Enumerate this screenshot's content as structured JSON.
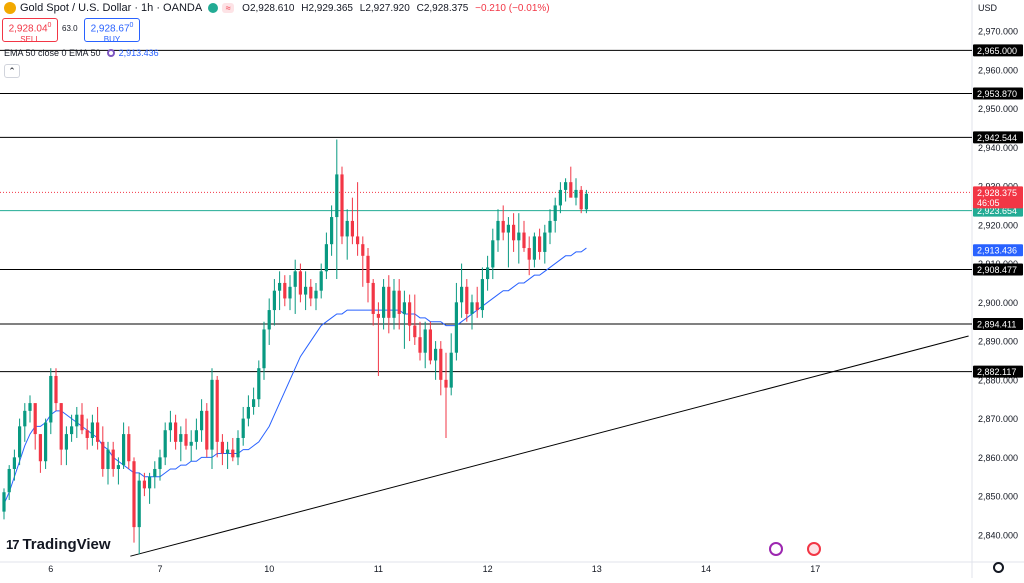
{
  "header": {
    "symbol": "Gold Spot / U.S. Dollar · 1h · OANDA",
    "open_label": "O",
    "open": "2,928.610",
    "high_label": "H",
    "high": "2,929.365",
    "low_label": "L",
    "low": "2,927.920",
    "close_label": "C",
    "close": "2,928.375",
    "change": "−0.210 (−0.01%)",
    "market_icon": "green-dot-icon",
    "wave_icon": "wave-icon",
    "wave_glyph": "≈"
  },
  "trade": {
    "sell_price": "2,928.04",
    "sell_sup": "0",
    "sell_label": "SELL",
    "spread": "63.0",
    "buy_price": "2,928.67",
    "buy_sup": "0",
    "buy_label": "BUY"
  },
  "indicator": {
    "legend": "EMA 50 close 0 EMA 50",
    "value": "2,913.436",
    "collapse_glyph": "⌃"
  },
  "axis": {
    "currency": "USD"
  },
  "logo": {
    "mark": "17",
    "text": "TradingView"
  },
  "colors": {
    "up": "#089981",
    "down": "#f23645",
    "ema": "#2962ff",
    "price_label": "#f23645",
    "teal_line": "#22ab94",
    "level_line": "#000000"
  },
  "chart_data": {
    "type": "candlestick",
    "timeframe": "1h",
    "ylim": [
      2833,
      2978
    ],
    "y_ticks": [
      "2,840.000",
      "2,850.000",
      "2,860.000",
      "2,870.000",
      "2,880.000",
      "2,890.000",
      "2,900.000",
      "2,910.000",
      "2,920.000",
      "2,930.000",
      "2,940.000",
      "2,950.000",
      "2,960.000",
      "2,970.000"
    ],
    "x_labels": [
      {
        "label": "6",
        "index": 9
      },
      {
        "label": "7",
        "index": 30
      },
      {
        "label": "10",
        "index": 51
      },
      {
        "label": "11",
        "index": 72
      },
      {
        "label": "12",
        "index": 93
      },
      {
        "label": "13",
        "index": 114
      },
      {
        "label": "14",
        "index": 135
      },
      {
        "label": "17",
        "index": 156
      }
    ],
    "horizontal_levels": [
      {
        "label": "2,965.000",
        "value": 2965.0
      },
      {
        "label": "2,953.870",
        "value": 2953.87
      },
      {
        "label": "2,942.544",
        "value": 2942.544
      },
      {
        "label": "2,908.477",
        "value": 2908.477
      },
      {
        "label": "2,894.411",
        "value": 2894.411
      },
      {
        "label": "2,882.117",
        "value": 2882.117
      }
    ],
    "teal_level": {
      "label": "2,923.654",
      "value": 2923.654
    },
    "current_price": {
      "label": "2,928.375",
      "countdown": "46:05",
      "value": 2928.375
    },
    "ema": {
      "label": "2,913.436",
      "value": 2913.436
    },
    "trendline": [
      {
        "index": 24.3,
        "value": 2834.5
      },
      {
        "index": 185.5,
        "value": 2891.3
      }
    ],
    "candles": [
      [
        2846,
        2852,
        2844,
        2851
      ],
      [
        2851,
        2858,
        2849,
        2857
      ],
      [
        2857,
        2862,
        2854,
        2860
      ],
      [
        2860,
        2870,
        2858,
        2868
      ],
      [
        2868,
        2874,
        2864,
        2872
      ],
      [
        2872,
        2876,
        2869,
        2874
      ],
      [
        2874,
        2873,
        2862,
        2866
      ],
      [
        2866,
        2866,
        2856,
        2859
      ],
      [
        2859,
        2870,
        2857,
        2869
      ],
      [
        2869,
        2883,
        2866,
        2881
      ],
      [
        2881,
        2883,
        2872,
        2874
      ],
      [
        2874,
        2874,
        2858,
        2862
      ],
      [
        2862,
        2868,
        2858,
        2866
      ],
      [
        2866,
        2871,
        2864,
        2868
      ],
      [
        2868,
        2873,
        2865,
        2871
      ],
      [
        2871,
        2874,
        2866,
        2867
      ],
      [
        2867,
        2870,
        2862,
        2865
      ],
      [
        2865,
        2871,
        2863,
        2869
      ],
      [
        2869,
        2873,
        2862,
        2864
      ],
      [
        2864,
        2868,
        2855,
        2857
      ],
      [
        2857,
        2864,
        2853,
        2862
      ],
      [
        2862,
        2864,
        2855,
        2857
      ],
      [
        2857,
        2860,
        2853,
        2858
      ],
      [
        2858,
        2869,
        2857,
        2866
      ],
      [
        2866,
        2868,
        2857,
        2859
      ],
      [
        2859,
        2860,
        2838,
        2842
      ],
      [
        2842,
        2856,
        2835,
        2854
      ],
      [
        2854,
        2856,
        2850,
        2852
      ],
      [
        2852,
        2856,
        2848,
        2855
      ],
      [
        2855,
        2859,
        2852,
        2857
      ],
      [
        2857,
        2862,
        2854,
        2860
      ],
      [
        2860,
        2869,
        2858,
        2867
      ],
      [
        2867,
        2872,
        2864,
        2869
      ],
      [
        2869,
        2871,
        2862,
        2864
      ],
      [
        2864,
        2868,
        2859,
        2866
      ],
      [
        2866,
        2870,
        2862,
        2863
      ],
      [
        2863,
        2867,
        2859,
        2864
      ],
      [
        2864,
        2870,
        2862,
        2867
      ],
      [
        2867,
        2875,
        2864,
        2872
      ],
      [
        2872,
        2874,
        2860,
        2862
      ],
      [
        2862,
        2883,
        2857,
        2880
      ],
      [
        2880,
        2881,
        2860,
        2864
      ],
      [
        2864,
        2866,
        2858,
        2861
      ],
      [
        2861,
        2864,
        2857,
        2862
      ],
      [
        2862,
        2865,
        2859,
        2860
      ],
      [
        2860,
        2867,
        2858,
        2865
      ],
      [
        2865,
        2873,
        2863,
        2870
      ],
      [
        2870,
        2876,
        2868,
        2873
      ],
      [
        2873,
        2878,
        2871,
        2875
      ],
      [
        2875,
        2885,
        2873,
        2883
      ],
      [
        2883,
        2895,
        2880,
        2893
      ],
      [
        2893,
        2901,
        2889,
        2898
      ],
      [
        2898,
        2906,
        2894,
        2903
      ],
      [
        2903,
        2908,
        2898,
        2905
      ],
      [
        2905,
        2907,
        2899,
        2901
      ],
      [
        2901,
        2907,
        2898,
        2904
      ],
      [
        2904,
        2911,
        2897,
        2908
      ],
      [
        2908,
        2910,
        2900,
        2902
      ],
      [
        2902,
        2908,
        2898,
        2904
      ],
      [
        2904,
        2906,
        2899,
        2901
      ],
      [
        2901,
        2905,
        2898,
        2903
      ],
      [
        2903,
        2910,
        2901,
        2908
      ],
      [
        2908,
        2918,
        2906,
        2915
      ],
      [
        2915,
        2925,
        2912,
        2922
      ],
      [
        2922,
        2942,
        2906,
        2933
      ],
      [
        2933,
        2935,
        2915,
        2917
      ],
      [
        2917,
        2924,
        2911,
        2921
      ],
      [
        2921,
        2927,
        2915,
        2917
      ],
      [
        2917,
        2931,
        2912,
        2915
      ],
      [
        2915,
        2917,
        2904,
        2912
      ],
      [
        2912,
        2914,
        2900,
        2905
      ],
      [
        2905,
        2906,
        2894,
        2897
      ],
      [
        2897,
        2900,
        2881,
        2896
      ],
      [
        2896,
        2906,
        2893,
        2904
      ],
      [
        2904,
        2907,
        2892,
        2896
      ],
      [
        2896,
        2906,
        2893,
        2903
      ],
      [
        2903,
        2906,
        2893,
        2897
      ],
      [
        2897,
        2903,
        2888,
        2900
      ],
      [
        2900,
        2902,
        2890,
        2894
      ],
      [
        2894,
        2902,
        2889,
        2891
      ],
      [
        2891,
        2895,
        2885,
        2887
      ],
      [
        2887,
        2895,
        2883,
        2893
      ],
      [
        2893,
        2895,
        2884,
        2885
      ],
      [
        2885,
        2890,
        2880,
        2888
      ],
      [
        2888,
        2890,
        2876,
        2880
      ],
      [
        2880,
        2887,
        2865,
        2878
      ],
      [
        2878,
        2892,
        2876,
        2887
      ],
      [
        2887,
        2905,
        2885,
        2900
      ],
      [
        2900,
        2910,
        2896,
        2904
      ],
      [
        2904,
        2906,
        2895,
        2897
      ],
      [
        2897,
        2902,
        2893,
        2900
      ],
      [
        2900,
        2904,
        2896,
        2898
      ],
      [
        2898,
        2909,
        2896,
        2906
      ],
      [
        2906,
        2912,
        2903,
        2909
      ],
      [
        2909,
        2919,
        2906,
        2916
      ],
      [
        2916,
        2924,
        2913,
        2921
      ],
      [
        2921,
        2925,
        2916,
        2918
      ],
      [
        2918,
        2922,
        2909,
        2920
      ],
      [
        2920,
        2923,
        2913,
        2916
      ],
      [
        2916,
        2923,
        2910,
        2918
      ],
      [
        2918,
        2921,
        2913,
        2914
      ],
      [
        2914,
        2917,
        2907,
        2911
      ],
      [
        2911,
        2918,
        2909,
        2917
      ],
      [
        2917,
        2919,
        2911,
        2913
      ],
      [
        2913,
        2920,
        2910,
        2918
      ],
      [
        2918,
        2924,
        2915,
        2921
      ],
      [
        2921,
        2927,
        2918,
        2925
      ],
      [
        2925,
        2931,
        2923,
        2929
      ],
      [
        2929,
        2932,
        2926,
        2931
      ],
      [
        2931,
        2935,
        2928,
        2927
      ],
      [
        2927,
        2932,
        2925,
        2929
      ],
      [
        2929,
        2930,
        2923,
        2924
      ],
      [
        2924,
        2929,
        2923,
        2928
      ]
    ],
    "ema_values": [
      2848,
      2851,
      2855,
      2859,
      2863,
      2866,
      2868,
      2868,
      2869,
      2871,
      2872,
      2872,
      2871,
      2870,
      2869,
      2868,
      2867,
      2866,
      2865,
      2863,
      2862,
      2860,
      2859,
      2858,
      2857,
      2856,
      2856,
      2855,
      2855,
      2855,
      2855,
      2856,
      2857,
      2857,
      2858,
      2858,
      2859,
      2859,
      2860,
      2860,
      2860,
      2861,
      2861,
      2861,
      2861,
      2861,
      2862,
      2862,
      2863,
      2864,
      2866,
      2868,
      2871,
      2874,
      2877,
      2880,
      2883,
      2886,
      2888,
      2890,
      2892,
      2894,
      2895,
      2896,
      2897,
      2897,
      2898,
      2898,
      2898,
      2898,
      2898,
      2898,
      2898,
      2898,
      2898,
      2898,
      2898,
      2897,
      2897,
      2897,
      2896,
      2896,
      2895,
      2895,
      2895,
      2894,
      2894,
      2894,
      2895,
      2896,
      2897,
      2898,
      2899,
      2900,
      2901,
      2902,
      2903,
      2903,
      2904,
      2905,
      2905,
      2906,
      2907,
      2907,
      2908,
      2909,
      2910,
      2911,
      2912,
      2912,
      2913,
      2913,
      2914
    ]
  }
}
